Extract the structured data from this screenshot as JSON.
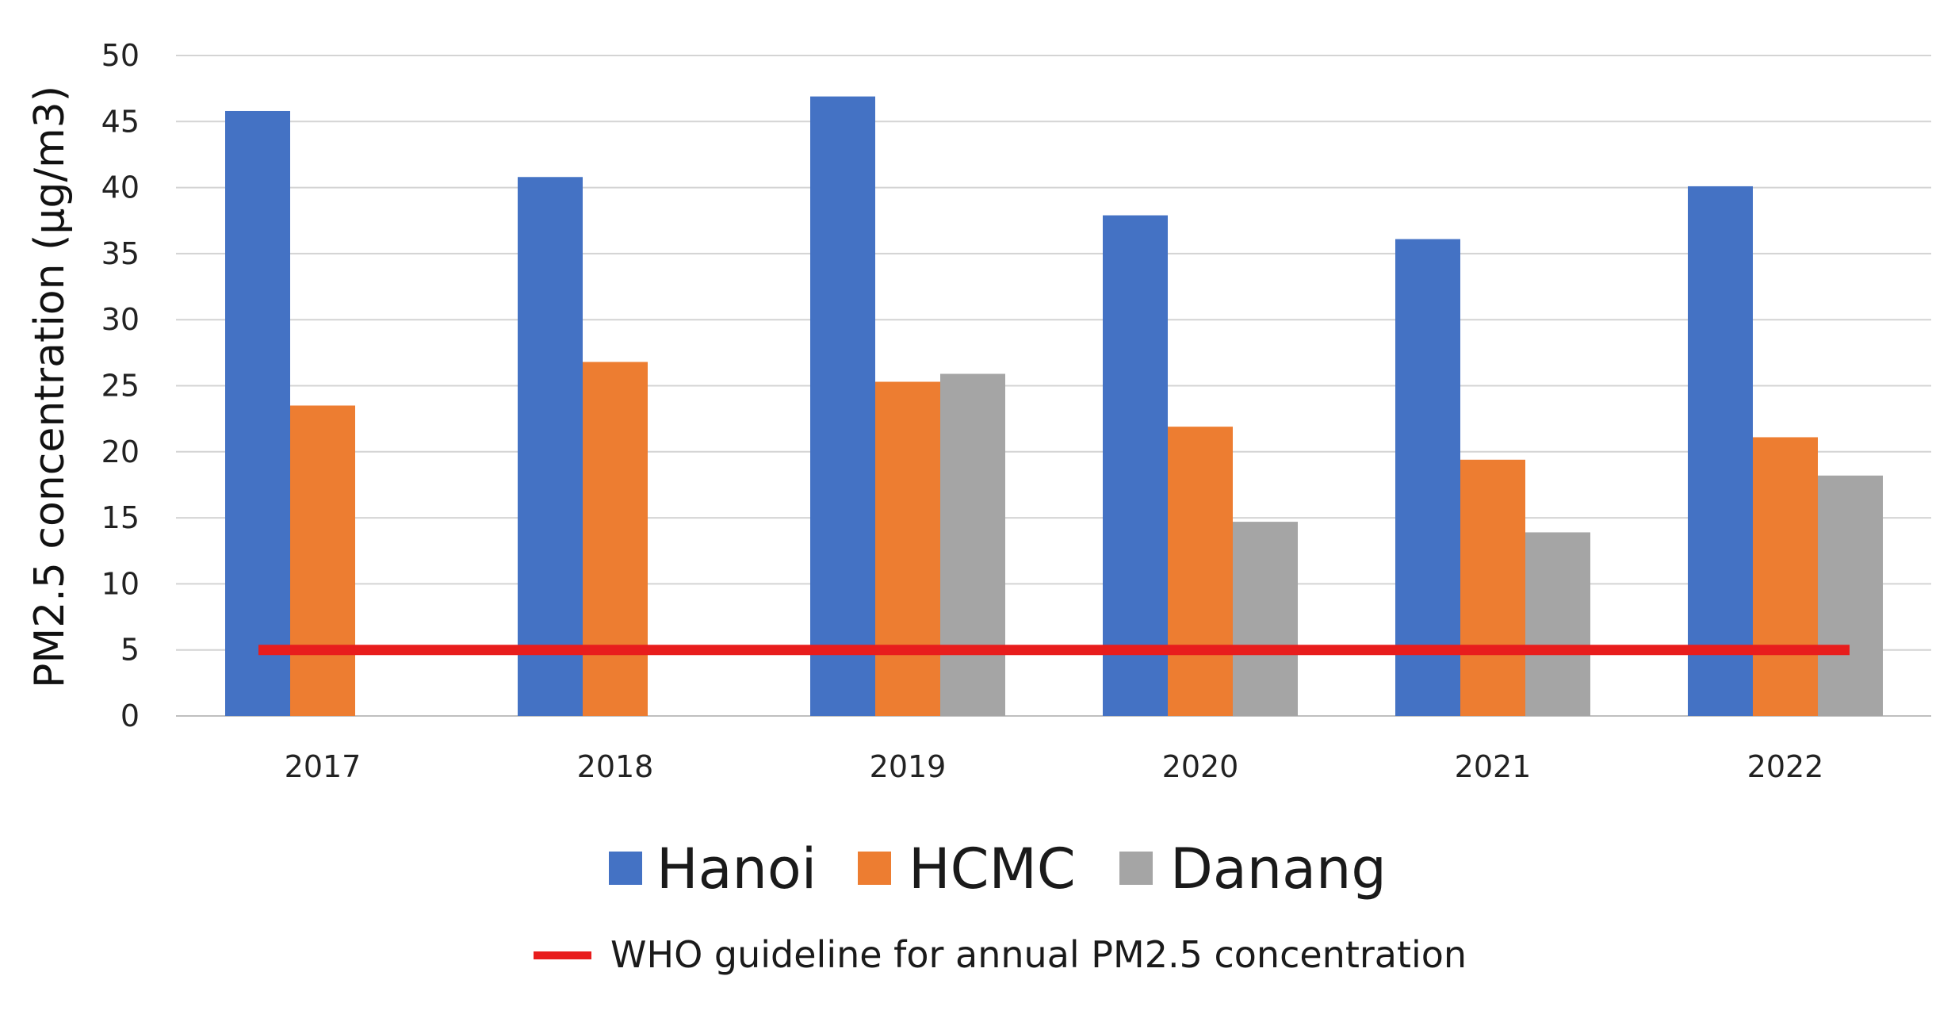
{
  "chart_data": {
    "type": "bar",
    "title": "",
    "xlabel": "",
    "ylabel": "PM2.5 concentration (µg/m3)",
    "ylim": [
      0,
      50
    ],
    "yticks": [
      0,
      5,
      10,
      15,
      20,
      25,
      30,
      35,
      40,
      45,
      50
    ],
    "grid": true,
    "legend_position": "bottom",
    "categories": [
      "2017",
      "2018",
      "2019",
      "2020",
      "2021",
      "2022"
    ],
    "series": [
      {
        "name": "Hanoi",
        "color": "#4472C4",
        "values": [
          45.8,
          40.8,
          46.9,
          37.9,
          36.1,
          40.1
        ]
      },
      {
        "name": "HCMC",
        "color": "#ED7D31",
        "values": [
          23.5,
          26.8,
          25.3,
          21.9,
          19.4,
          21.1
        ]
      },
      {
        "name": "Danang",
        "color": "#A5A5A5",
        "values": [
          null,
          null,
          25.9,
          14.7,
          13.9,
          18.2
        ]
      }
    ],
    "reference_line": {
      "label": "WHO guideline for annual PM2.5 concentration",
      "value": 5,
      "color": "#E81D1D"
    }
  }
}
